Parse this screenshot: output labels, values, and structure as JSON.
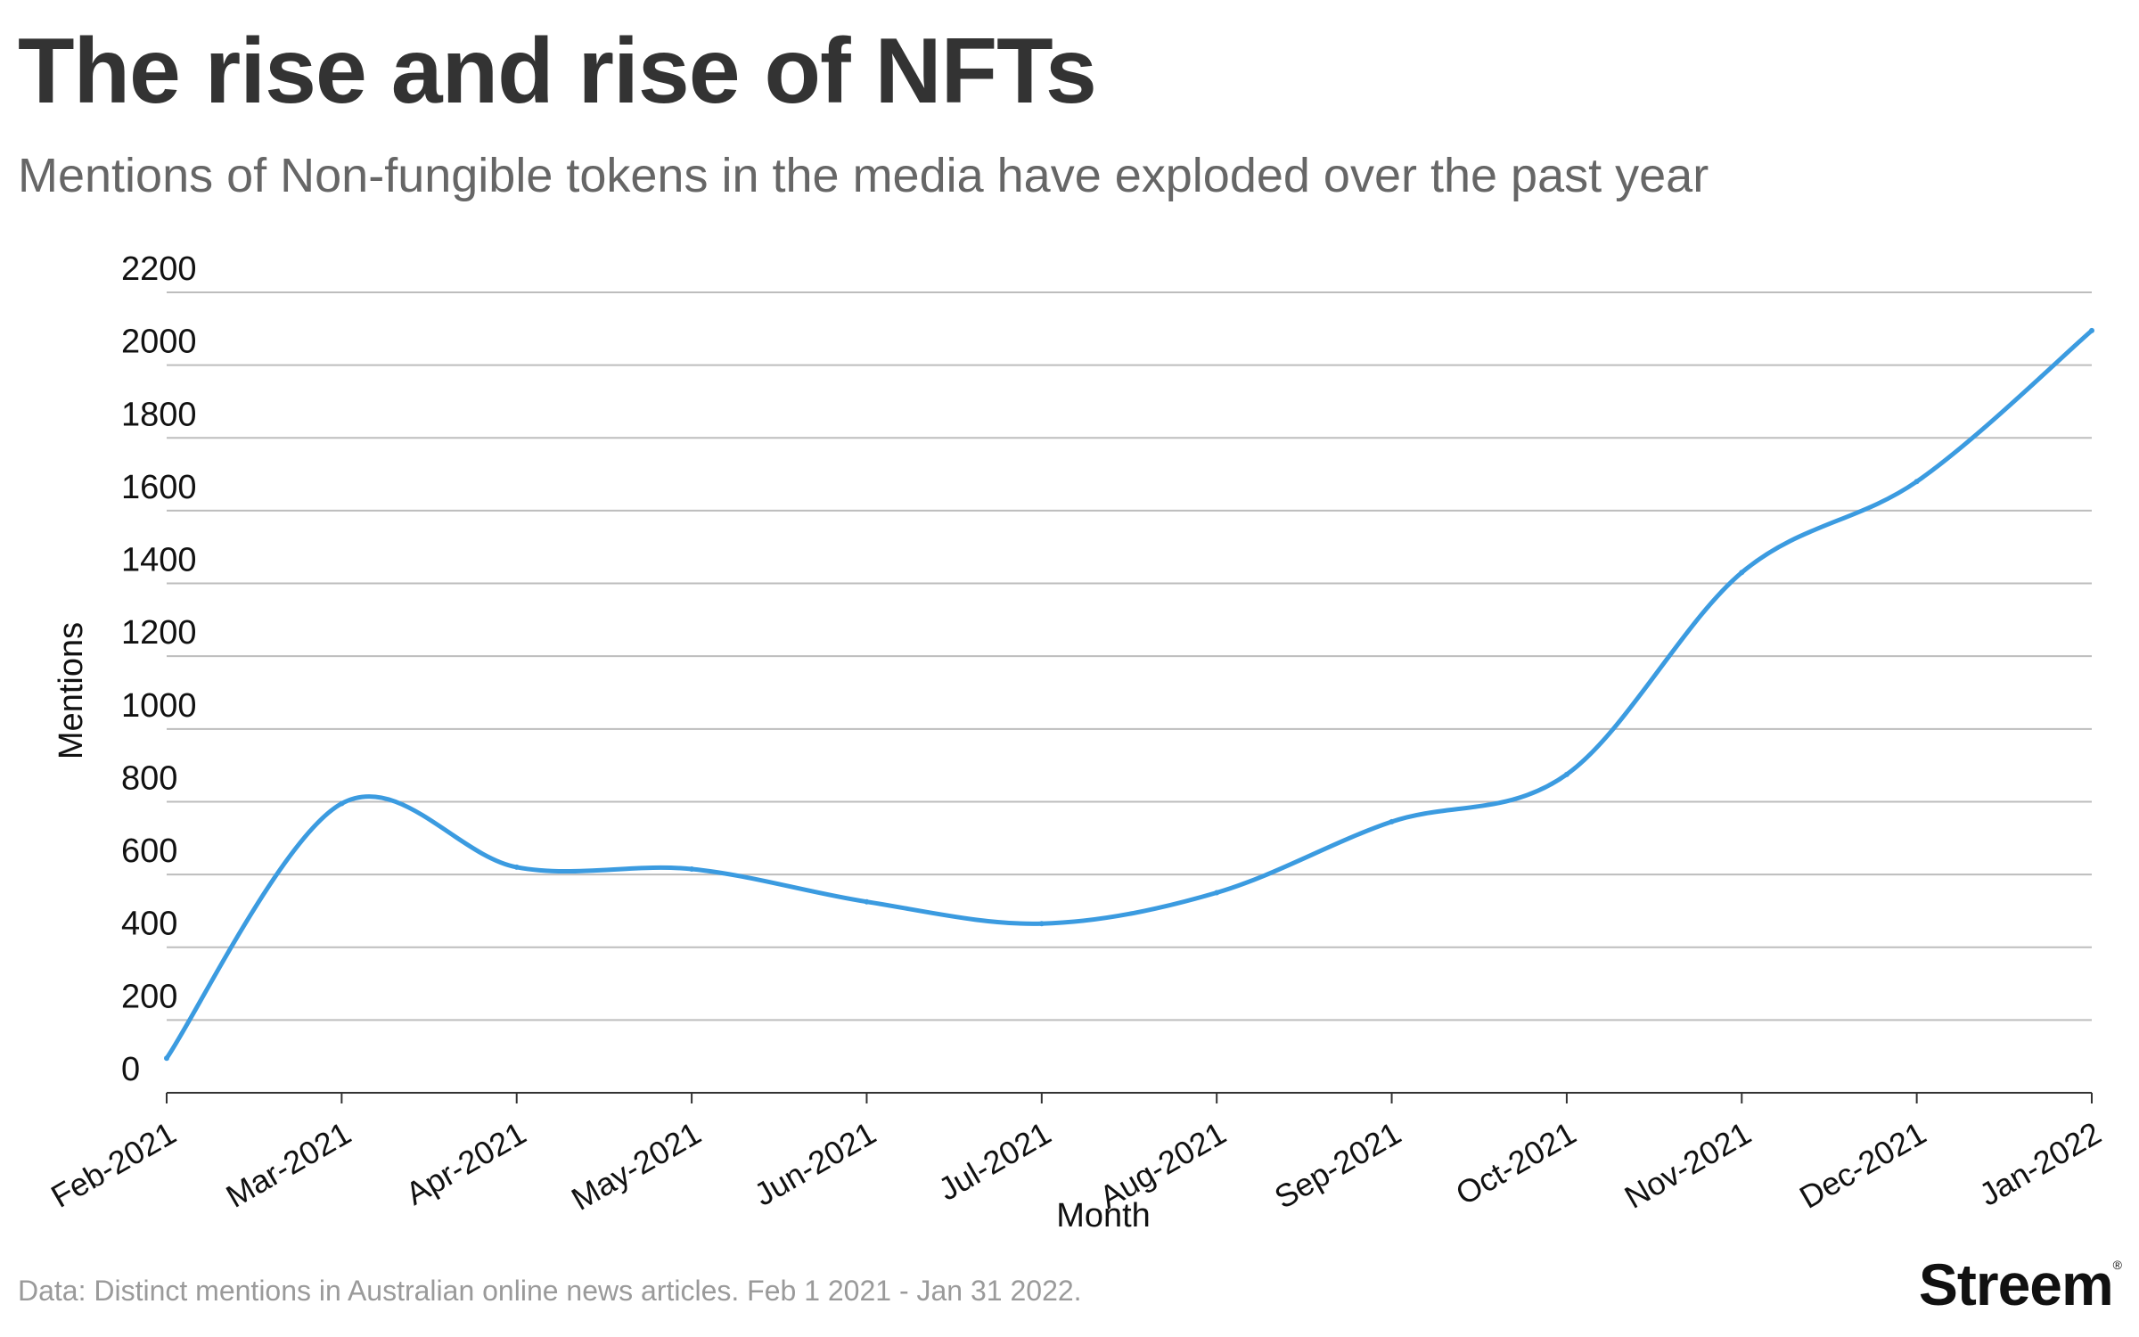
{
  "header": {
    "title": "The rise and rise of NFTs",
    "subtitle": "Mentions of Non-fungible tokens in the media have exploded over the past year"
  },
  "footer": {
    "source": "Data: Distinct mentions in Australian online news articles. Feb 1 2021 - Jan 31 2022.",
    "brand": "Streem"
  },
  "colors": {
    "line": "#3b9be0",
    "grid": "#bdbdbd",
    "axis_text": "#111111"
  },
  "chart_data": {
    "type": "line",
    "title": "The rise and rise of NFTs",
    "subtitle": "Mentions of Non-fungible tokens in the media have exploded over the past year",
    "xlabel": "Month",
    "ylabel": "Mentions",
    "categories": [
      "Feb-2021",
      "Mar-2021",
      "Apr-2021",
      "May-2021",
      "Jun-2021",
      "Jul-2021",
      "Aug-2021",
      "Sep-2021",
      "Oct-2021",
      "Nov-2021",
      "Dec-2021",
      "Jan-2022"
    ],
    "series": [
      {
        "values": [
          95,
          795,
          620,
          615,
          525,
          465,
          550,
          745,
          875,
          1430,
          1680,
          2095
        ]
      }
    ],
    "ylim": [
      0,
      2200
    ],
    "yticks": [
      0,
      200,
      400,
      600,
      800,
      1000,
      1200,
      1400,
      1600,
      1800,
      2000,
      2200
    ],
    "grid": true,
    "legend": "none"
  }
}
